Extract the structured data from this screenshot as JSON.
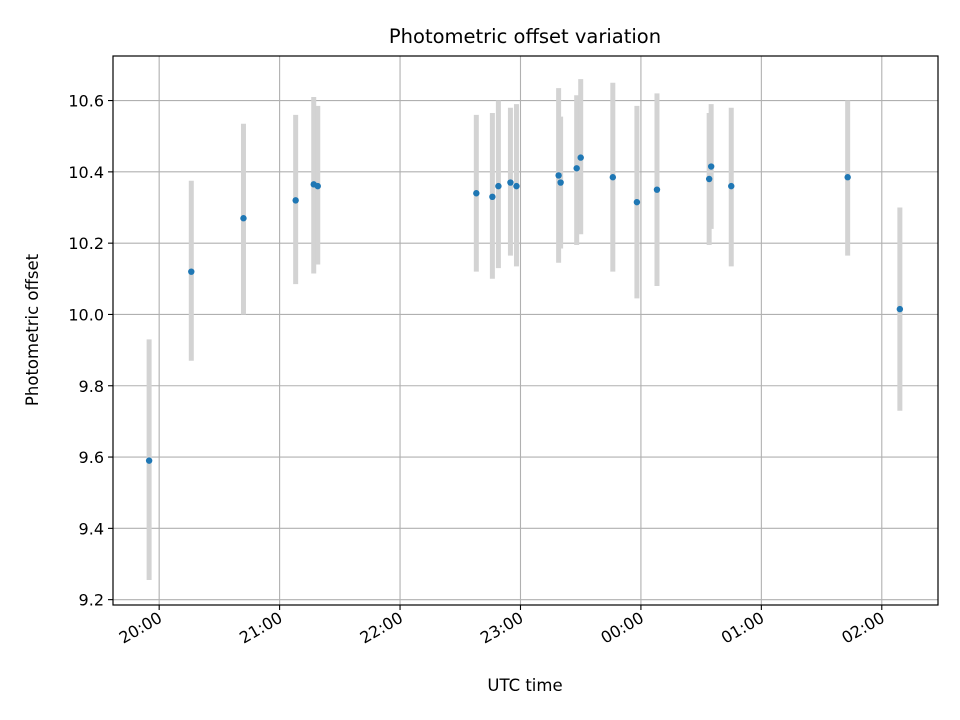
{
  "chart_data": {
    "type": "scatter",
    "title": "Photometric offset variation",
    "xlabel": "UTC time",
    "ylabel": "Photometric offset",
    "x_ticks": [
      "20:00",
      "21:00",
      "22:00",
      "23:00",
      "00:00",
      "01:00",
      "02:00"
    ],
    "y_ticks": [
      "9.2",
      "9.4",
      "9.6",
      "9.8",
      "10.0",
      "10.2",
      "10.4",
      "10.6"
    ],
    "xlim": [
      "19:37",
      "02:28"
    ],
    "ylim": [
      9.185,
      10.725
    ],
    "grid": true,
    "marker_color": "#1f77b4",
    "errorbar_color": "#d3d3d3",
    "series": [
      {
        "points": [
          {
            "t": "19:55",
            "y": 9.59,
            "ylo": 9.255,
            "yhi": 9.93
          },
          {
            "t": "20:16",
            "y": 10.12,
            "ylo": 9.87,
            "yhi": 10.375
          },
          {
            "t": "20:42",
            "y": 10.27,
            "ylo": 10.0,
            "yhi": 10.535
          },
          {
            "t": "21:08",
            "y": 10.32,
            "ylo": 10.085,
            "yhi": 10.56
          },
          {
            "t": "21:17",
            "y": 10.365,
            "ylo": 10.115,
            "yhi": 10.61
          },
          {
            "t": "21:19",
            "y": 10.36,
            "ylo": 10.14,
            "yhi": 10.585
          },
          {
            "t": "22:38",
            "y": 10.34,
            "ylo": 10.12,
            "yhi": 10.56
          },
          {
            "t": "22:46",
            "y": 10.33,
            "ylo": 10.1,
            "yhi": 10.565
          },
          {
            "t": "22:49",
            "y": 10.36,
            "ylo": 10.13,
            "yhi": 10.6
          },
          {
            "t": "22:55",
            "y": 10.37,
            "ylo": 10.165,
            "yhi": 10.58
          },
          {
            "t": "22:58",
            "y": 10.36,
            "ylo": 10.135,
            "yhi": 10.59
          },
          {
            "t": "23:19",
            "y": 10.39,
            "ylo": 10.145,
            "yhi": 10.635
          },
          {
            "t": "23:20",
            "y": 10.37,
            "ylo": 10.185,
            "yhi": 10.555
          },
          {
            "t": "23:28",
            "y": 10.41,
            "ylo": 10.195,
            "yhi": 10.615
          },
          {
            "t": "23:30",
            "y": 10.44,
            "ylo": 10.225,
            "yhi": 10.66
          },
          {
            "t": "23:46",
            "y": 10.385,
            "ylo": 10.12,
            "yhi": 10.65
          },
          {
            "t": "23:58",
            "y": 10.315,
            "ylo": 10.045,
            "yhi": 10.585
          },
          {
            "t": "00:08",
            "y": 10.35,
            "ylo": 10.08,
            "yhi": 10.62
          },
          {
            "t": "00:34",
            "y": 10.38,
            "ylo": 10.195,
            "yhi": 10.565
          },
          {
            "t": "00:35",
            "y": 10.415,
            "ylo": 10.24,
            "yhi": 10.59
          },
          {
            "t": "00:45",
            "y": 10.36,
            "ylo": 10.135,
            "yhi": 10.58
          },
          {
            "t": "01:43",
            "y": 10.385,
            "ylo": 10.165,
            "yhi": 10.6
          },
          {
            "t": "02:09",
            "y": 10.015,
            "ylo": 9.73,
            "yhi": 10.3
          }
        ]
      }
    ]
  }
}
